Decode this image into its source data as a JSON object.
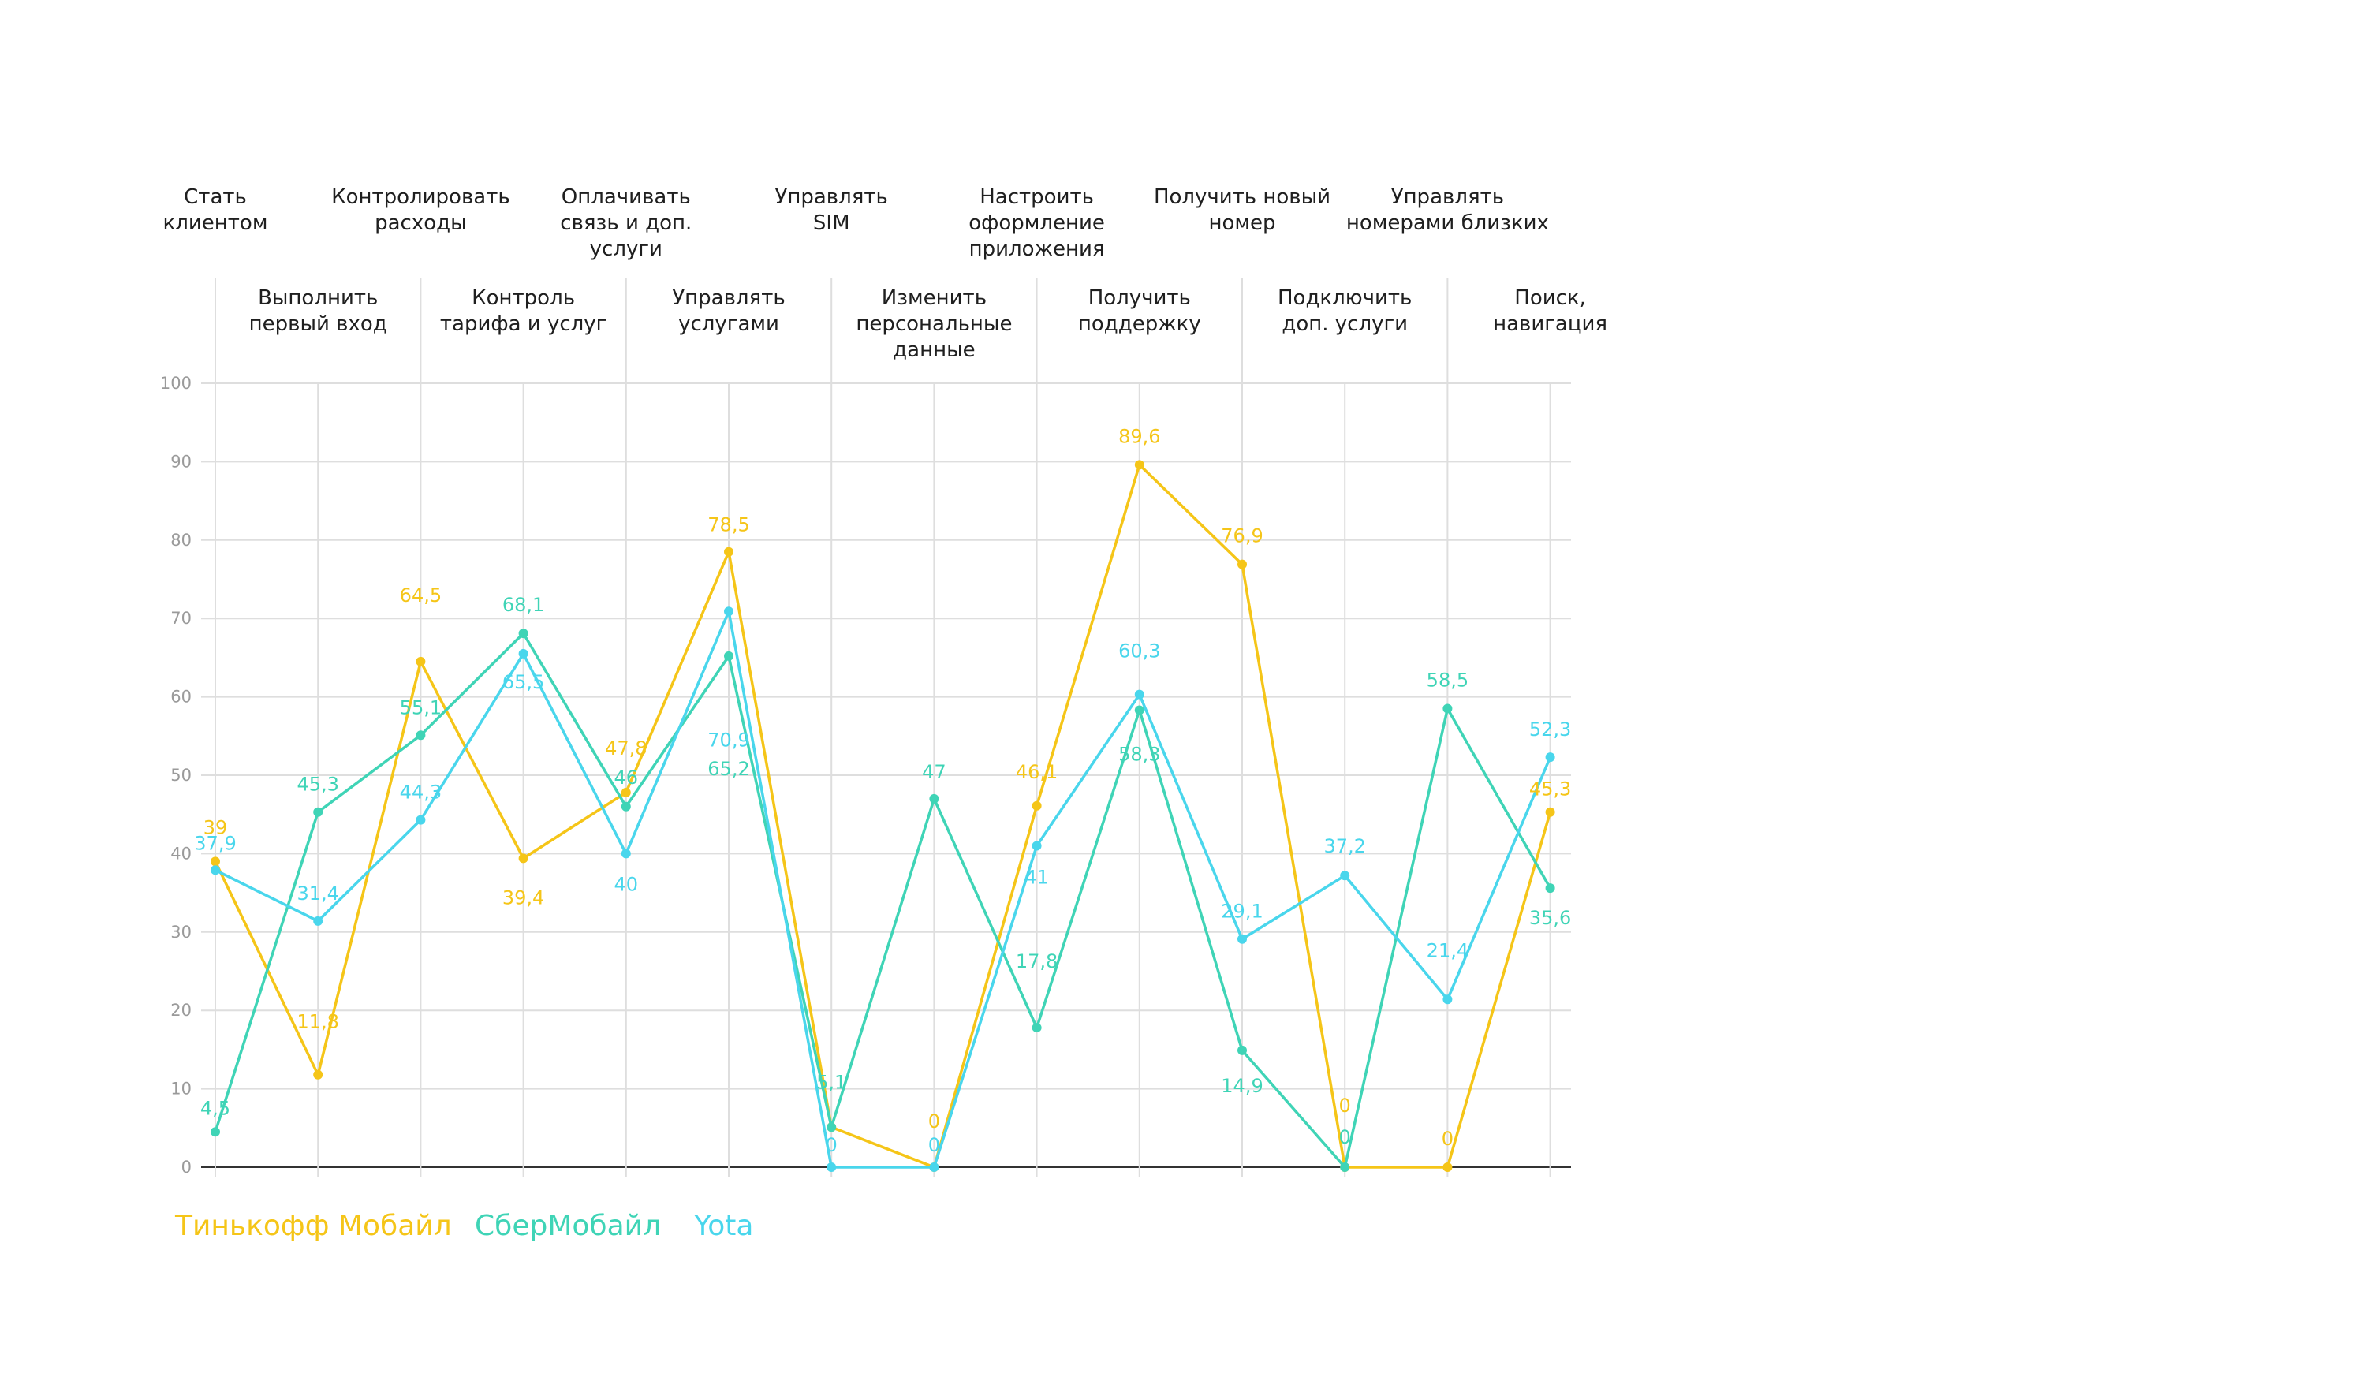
{
  "chart_data": {
    "type": "line",
    "categories": [
      [
        "Стать",
        "клиентом"
      ],
      [
        "Выполнить",
        "первый вход"
      ],
      [
        "Контролировать",
        "расходы"
      ],
      [
        "Контроль",
        "тарифа и услуг"
      ],
      [
        "Оплачивать",
        "связь и доп.",
        "услуги"
      ],
      [
        "Управлять",
        "услугами"
      ],
      [
        "Управлять",
        "SIM"
      ],
      [
        "Изменить",
        "персональные",
        "данные"
      ],
      [
        "Настроить",
        "оформление",
        "приложения"
      ],
      [
        "Получить",
        "поддержку"
      ],
      [
        "Получить новый",
        "номер"
      ],
      [
        "Подключить",
        "доп. услуги"
      ],
      [
        "Управлять",
        "номерами близких"
      ],
      [
        "Поиск,",
        "навигация"
      ]
    ],
    "ylim": [
      0,
      100
    ],
    "yticks": [
      "0",
      "10",
      "20",
      "30",
      "40",
      "50",
      "60",
      "70",
      "80",
      "90",
      "100"
    ],
    "grid": true,
    "legend_position": "bottom-left",
    "series": [
      {
        "name": "Тинькофф Мобайл",
        "color": "#f5c518",
        "values": [
          39,
          11.8,
          64.5,
          39.4,
          47.8,
          78.5,
          5.1,
          0,
          46.1,
          89.6,
          76.9,
          0,
          0,
          45.3
        ],
        "labels": [
          "39",
          "11,8",
          "64,5",
          "39,4",
          "47,8",
          "78,5",
          "",
          "0",
          "46,1",
          "89,6",
          "76,9",
          "0",
          "0",
          "45,3"
        ]
      },
      {
        "name": "СберМобайл",
        "color": "#3fd4b6",
        "values": [
          4.5,
          45.3,
          55.1,
          68.1,
          46,
          65.2,
          5.1,
          47,
          17.8,
          58.3,
          14.9,
          0,
          58.5,
          35.6
        ],
        "labels": [
          "4,5",
          "45,3",
          "55,1",
          "68,1",
          "46",
          "65,2",
          "5,1",
          "47",
          "17,8",
          "58,3",
          "14,9",
          "0",
          "58,5",
          "35,6"
        ]
      },
      {
        "name": "Yota",
        "color": "#49d6ec",
        "values": [
          37.9,
          31.4,
          44.3,
          65.5,
          40,
          70.9,
          0,
          0,
          41,
          60.3,
          29.1,
          37.2,
          21.4,
          52.3
        ],
        "labels": [
          "37,9",
          "31,4",
          "44,3",
          "65,5",
          "40",
          "70,9",
          "0",
          "0",
          "41",
          "60,3",
          "29,1",
          "37,2",
          "21,4",
          "52,3"
        ]
      }
    ]
  }
}
